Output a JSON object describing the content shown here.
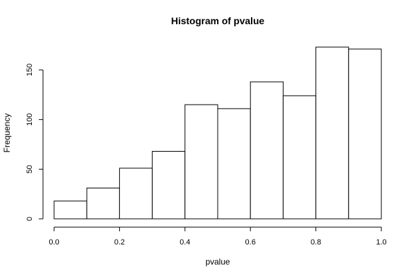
{
  "chart_data": {
    "type": "bar",
    "title": "Histogram of pvalue",
    "xlabel": "pvalue",
    "ylabel": "Frequency",
    "bins": [
      {
        "start": 0.0,
        "end": 0.1,
        "count": 18
      },
      {
        "start": 0.1,
        "end": 0.2,
        "count": 31
      },
      {
        "start": 0.2,
        "end": 0.3,
        "count": 51
      },
      {
        "start": 0.3,
        "end": 0.4,
        "count": 68
      },
      {
        "start": 0.4,
        "end": 0.5,
        "count": 115
      },
      {
        "start": 0.5,
        "end": 0.6,
        "count": 111
      },
      {
        "start": 0.6,
        "end": 0.7,
        "count": 138
      },
      {
        "start": 0.7,
        "end": 0.8,
        "count": 124
      },
      {
        "start": 0.8,
        "end": 0.9,
        "count": 173
      },
      {
        "start": 0.9,
        "end": 1.0,
        "count": 171
      }
    ],
    "xlim": [
      0.0,
      1.0
    ],
    "ylim": [
      0,
      173
    ],
    "x_ticks": [
      "0.0",
      "0.2",
      "0.4",
      "0.6",
      "0.8",
      "1.0"
    ],
    "y_ticks": [
      "0",
      "50",
      "100",
      "150"
    ],
    "grid": false,
    "legend": "none",
    "colors": {
      "bar_fill": "#ffffff",
      "bar_stroke": "#000000"
    }
  }
}
